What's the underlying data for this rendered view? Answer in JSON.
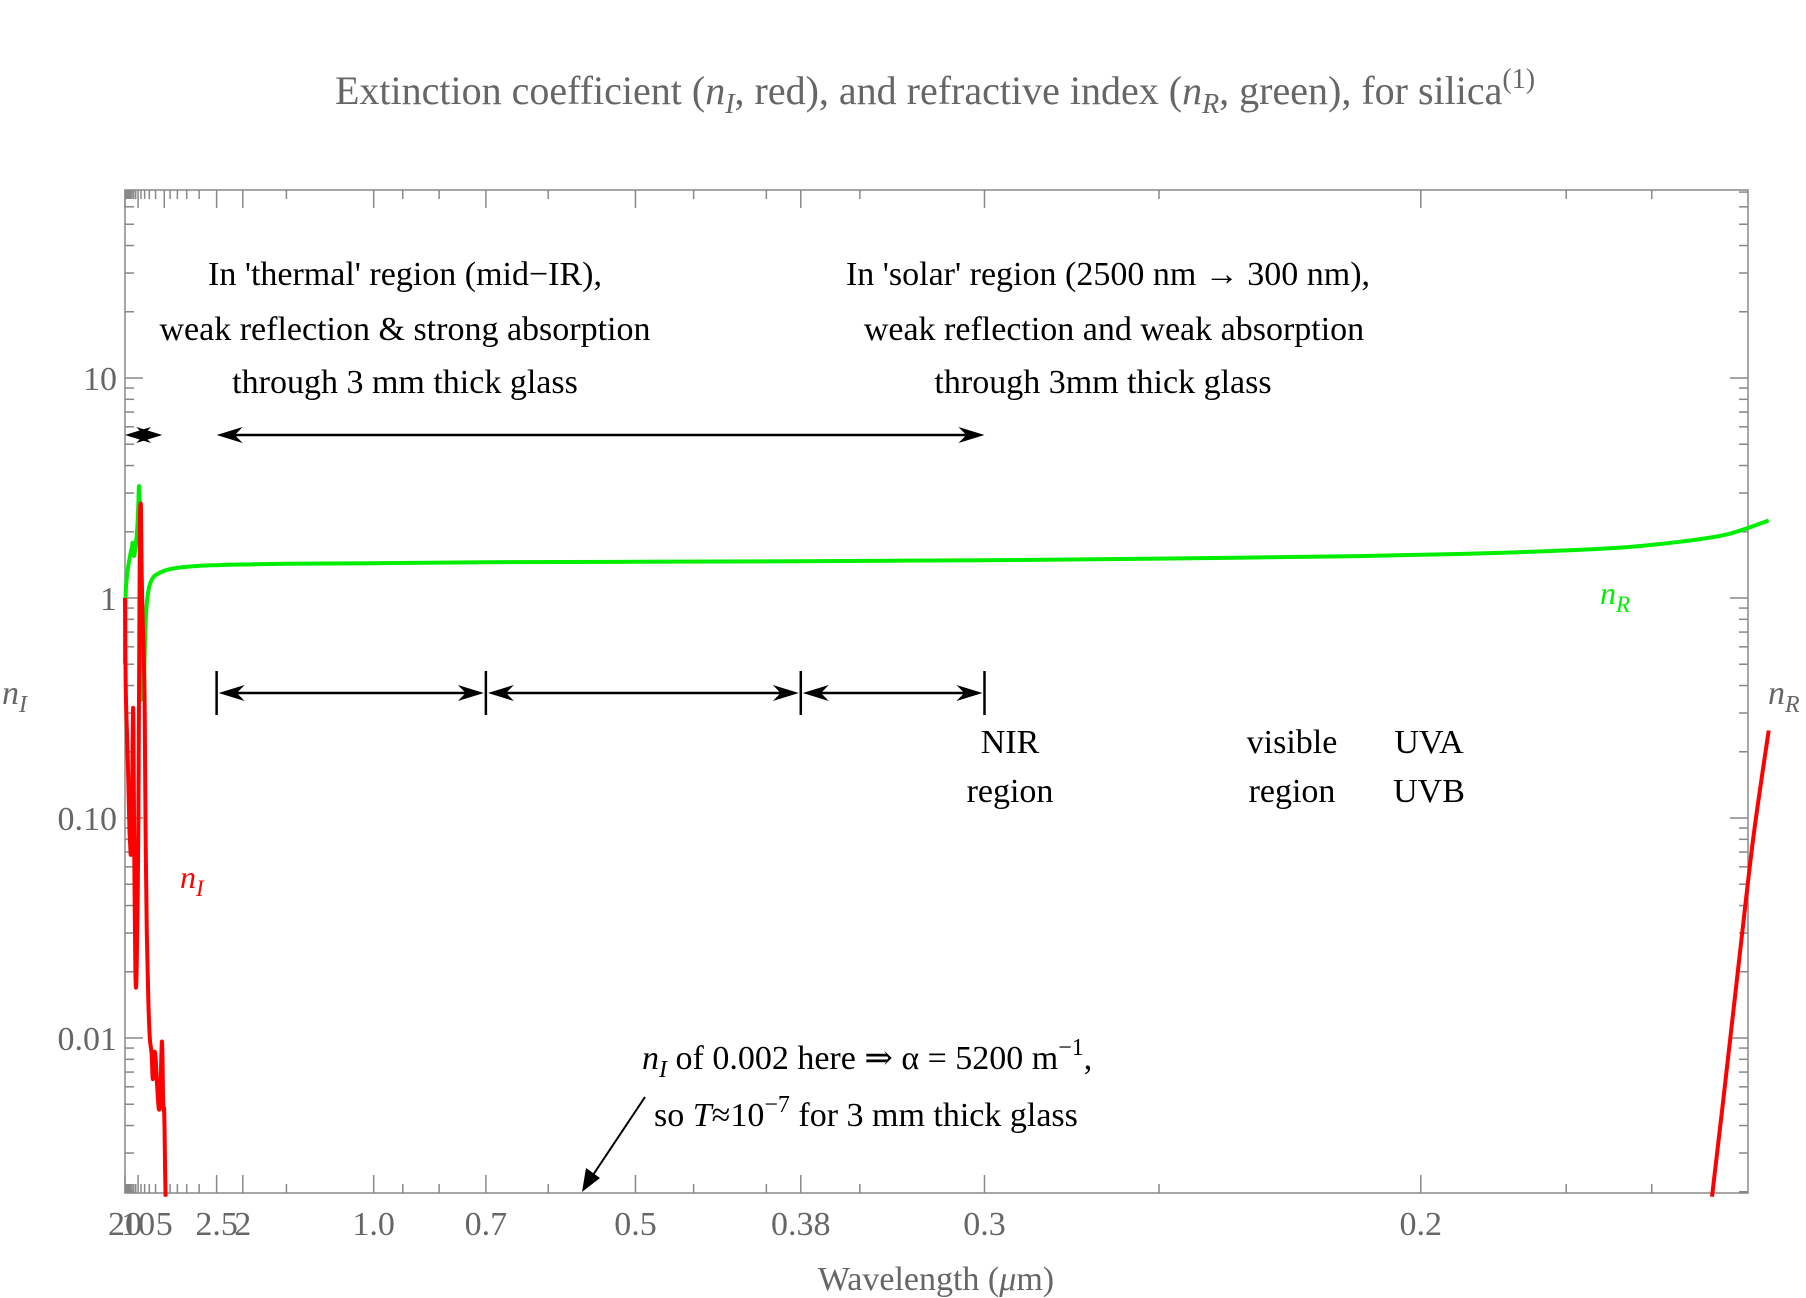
{
  "chart_data": {
    "type": "line",
    "title": {
      "pre": "Extinction coefficient (",
      "ni_base": "n",
      "ni_sub": "I",
      "mid": ", red), and refractive index (",
      "nr_base": "n",
      "nr_sub": "R",
      "post": ", green), for silica",
      "sup": "(1)"
    },
    "xlabel": {
      "pre": "Wavelength (",
      "mu": "μ",
      "post": "m)"
    },
    "ylabel_left": {
      "base": "n",
      "sub": "I"
    },
    "ylabel_right": {
      "base": "n",
      "sub": "R"
    },
    "x_scale": "reciprocal (wavenumber), wavelength decreasing to the right",
    "y_scale": "log",
    "xlim": [
      20,
      0.16
    ],
    "ylim": [
      0.002,
      80
    ],
    "x_ticks": [
      {
        "value": 20,
        "label": "20"
      },
      {
        "value": 10,
        "label": "10"
      },
      {
        "value": 5,
        "label": "5"
      },
      {
        "value": 2.5,
        "label": "2.5"
      },
      {
        "value": 2,
        "label": "2"
      },
      {
        "value": 1.0,
        "label": "1.0"
      },
      {
        "value": 0.7,
        "label": "0.7"
      },
      {
        "value": 0.5,
        "label": "0.5"
      },
      {
        "value": 0.38,
        "label": "0.38"
      },
      {
        "value": 0.3,
        "label": "0.3"
      },
      {
        "value": 0.2,
        "label": "0.2"
      }
    ],
    "y_ticks": [
      {
        "value": 10,
        "label": "10"
      },
      {
        "value": 1,
        "label": "1"
      },
      {
        "value": 0.1,
        "label": "0.10"
      },
      {
        "value": 0.01,
        "label": "0.01"
      }
    ],
    "series": [
      {
        "name": "n_I",
        "color": "#ff0000",
        "label": {
          "base": "n",
          "sub": "I"
        },
        "points": [
          [
            20,
            1.0
          ],
          [
            19,
            0.4
          ],
          [
            17.5,
            0.25
          ],
          [
            16,
            0.15
          ],
          [
            15,
            0.09
          ],
          [
            14.3,
            0.075
          ],
          [
            13.9,
            0.068
          ],
          [
            13.6,
            0.072
          ],
          [
            13.4,
            0.08
          ],
          [
            13.2,
            0.078
          ],
          [
            13,
            0.09
          ],
          [
            12.7,
            0.2
          ],
          [
            12.4,
            0.31
          ],
          [
            12.2,
            0.28
          ],
          [
            12,
            0.17
          ],
          [
            11.6,
            0.05
          ],
          [
            11.2,
            0.022
          ],
          [
            10.9,
            0.017
          ],
          [
            10.6,
            0.02
          ],
          [
            10.2,
            0.04
          ],
          [
            9.9,
            0.1
          ],
          [
            9.6,
            0.5
          ],
          [
            9.4,
            1.8
          ],
          [
            9.3,
            2.5
          ],
          [
            9.15,
            2.65
          ],
          [
            9.0,
            2.5
          ],
          [
            8.8,
            1.3
          ],
          [
            8.6,
            0.9
          ],
          [
            8.3,
            0.6
          ],
          [
            8.0,
            0.35
          ],
          [
            7.8,
            0.1
          ],
          [
            7.5,
            0.03
          ],
          [
            7.2,
            0.015
          ],
          [
            6.9,
            0.01
          ],
          [
            6.6,
            0.0085
          ],
          [
            6.4,
            0.0065
          ],
          [
            6.2,
            0.0085
          ],
          [
            6.0,
            0.0082
          ],
          [
            5.8,
            0.0062
          ],
          [
            5.6,
            0.0048
          ],
          [
            5.45,
            0.005
          ],
          [
            5.35,
            0.0065
          ],
          [
            5.25,
            0.0095
          ],
          [
            5.18,
            0.0085
          ],
          [
            5.12,
            0.0055
          ],
          [
            5.06,
            0.0047
          ],
          [
            5.02,
            0.0048
          ],
          [
            4.98,
            0.004
          ],
          [
            4.92,
            0.0025
          ],
          [
            4.88,
            0.0019
          ]
        ],
        "points_uv": [
          [
            0.1636,
            0.0019
          ],
          [
            0.1625,
            0.005
          ],
          [
            0.161,
            0.02
          ],
          [
            0.1595,
            0.08
          ],
          [
            0.158,
            0.25
          ]
        ]
      },
      {
        "name": "n_R",
        "color": "#00ee00",
        "label": {
          "base": "n",
          "sub": "R"
        },
        "points": [
          [
            20,
            0.5
          ],
          [
            19.6,
            0.8
          ],
          [
            19.0,
            1.05
          ],
          [
            18,
            1.2
          ],
          [
            16,
            1.4
          ],
          [
            14,
            1.6
          ],
          [
            13,
            1.7
          ],
          [
            12.7,
            1.78
          ],
          [
            12.4,
            1.72
          ],
          [
            12.0,
            1.58
          ],
          [
            11.7,
            1.56
          ],
          [
            11.2,
            1.68
          ],
          [
            10.6,
            1.9
          ],
          [
            10.2,
            2.2
          ],
          [
            9.9,
            2.7
          ],
          [
            9.7,
            3.2
          ],
          [
            9.55,
            3.1
          ],
          [
            9.4,
            2.7
          ],
          [
            9.25,
            2.2
          ],
          [
            9.1,
            1.2
          ],
          [
            8.95,
            0.5
          ],
          [
            8.88,
            0.35
          ],
          [
            8.75,
            0.38
          ],
          [
            8.6,
            0.44
          ],
          [
            8.45,
            0.44
          ],
          [
            8.3,
            0.38
          ],
          [
            8.2,
            0.37
          ],
          [
            8.05,
            0.5
          ],
          [
            7.8,
            0.75
          ],
          [
            7.5,
            0.95
          ],
          [
            7.0,
            1.13
          ],
          [
            6.5,
            1.22
          ],
          [
            6.0,
            1.27
          ],
          [
            5.0,
            1.33
          ],
          [
            4.0,
            1.37
          ],
          [
            3.0,
            1.4
          ],
          [
            2.5,
            1.41
          ],
          [
            2.0,
            1.42
          ],
          [
            1.5,
            1.43
          ],
          [
            1.0,
            1.44
          ],
          [
            0.7,
            1.455
          ],
          [
            0.5,
            1.46
          ],
          [
            0.38,
            1.47
          ],
          [
            0.3,
            1.485
          ],
          [
            0.25,
            1.51
          ],
          [
            0.21,
            1.55
          ],
          [
            0.19,
            1.6
          ],
          [
            0.175,
            1.68
          ],
          [
            0.167,
            1.8
          ],
          [
            0.162,
            1.95
          ],
          [
            0.158,
            2.25
          ]
        ]
      }
    ],
    "annotations": {
      "thermal_lines": [
        "In 'thermal' region (mid−IR),",
        "weak reflection & strong absorption",
        "through 3 mm thick glass"
      ],
      "solar_lines": [
        "In 'solar' region (2500 nm → 300 nm),",
        "weak reflection and weak absorption",
        "through 3mm thick glass"
      ],
      "nir_lines": [
        "NIR",
        "region"
      ],
      "visible_lines": [
        "visible",
        "region"
      ],
      "uv_lines": [
        "UVA",
        "UVB"
      ],
      "note_line1": {
        "base": "n",
        "sub": "I",
        "text": " of 0.002 here ⇒ α = 5200 m",
        "sup": "−1",
        "tail": ","
      },
      "note_line2": {
        "pre": "so ",
        "var": "T",
        "mid": "≈10",
        "sup": "−7",
        "post": " for 3 mm thick glass"
      },
      "thermal_span": [
        20,
        5.2
      ],
      "solar_span": [
        2.5,
        0.3
      ],
      "region_boundaries": [
        2.5,
        0.7,
        0.38,
        0.3
      ]
    }
  }
}
